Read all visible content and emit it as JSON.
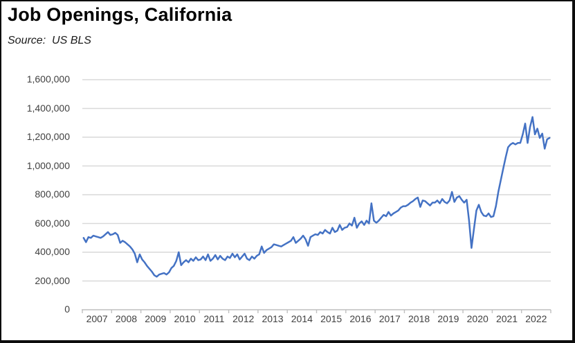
{
  "header": {
    "title": "Job Openings, California",
    "source": "Source:  US BLS"
  },
  "chart_data": {
    "type": "line",
    "title": "Job Openings, California",
    "source": "Source:  US BLS",
    "xlabel": "",
    "ylabel": "",
    "ylim": [
      0,
      1600000
    ],
    "grid": true,
    "legend": "none",
    "frequency": "monthly",
    "start_month": "2007-01",
    "end_month": "2022-12",
    "x_year_labels": [
      "2007",
      "2008",
      "2009",
      "2010",
      "2011",
      "2012",
      "2013",
      "2014",
      "2015",
      "2016",
      "2017",
      "2018",
      "2019",
      "2020",
      "2021",
      "2022"
    ],
    "y_ticks": [
      {
        "value": 0,
        "label": "0"
      },
      {
        "value": 200000,
        "label": "200,000"
      },
      {
        "value": 400000,
        "label": "400,000"
      },
      {
        "value": 600000,
        "label": "600,000"
      },
      {
        "value": 800000,
        "label": "800,000"
      },
      {
        "value": 1000000,
        "label": "1,000,000"
      },
      {
        "value": 1200000,
        "label": "1,200,000"
      },
      {
        "value": 1400000,
        "label": "1,400,000"
      },
      {
        "value": 1600000,
        "label": "1,600,000"
      }
    ],
    "series": [
      {
        "name": "Job Openings",
        "values": [
          500000,
          470000,
          505000,
          500000,
          515000,
          510000,
          505000,
          500000,
          510000,
          525000,
          540000,
          520000,
          525000,
          535000,
          520000,
          465000,
          480000,
          470000,
          455000,
          440000,
          420000,
          390000,
          330000,
          385000,
          350000,
          330000,
          305000,
          285000,
          265000,
          240000,
          230000,
          245000,
          250000,
          255000,
          245000,
          260000,
          290000,
          305000,
          340000,
          400000,
          310000,
          330000,
          345000,
          330000,
          355000,
          340000,
          365000,
          345000,
          350000,
          370000,
          345000,
          385000,
          340000,
          355000,
          380000,
          350000,
          375000,
          355000,
          345000,
          370000,
          360000,
          390000,
          365000,
          385000,
          350000,
          370000,
          390000,
          355000,
          345000,
          370000,
          355000,
          375000,
          385000,
          440000,
          395000,
          415000,
          425000,
          435000,
          455000,
          450000,
          445000,
          440000,
          450000,
          460000,
          470000,
          480000,
          505000,
          465000,
          480000,
          495000,
          515000,
          490000,
          445000,
          505000,
          515000,
          525000,
          520000,
          540000,
          530000,
          555000,
          540000,
          530000,
          570000,
          540000,
          550000,
          590000,
          555000,
          570000,
          575000,
          600000,
          585000,
          640000,
          570000,
          600000,
          615000,
          590000,
          620000,
          600000,
          740000,
          620000,
          605000,
          620000,
          640000,
          660000,
          650000,
          680000,
          655000,
          670000,
          680000,
          690000,
          710000,
          720000,
          720000,
          730000,
          745000,
          755000,
          770000,
          780000,
          715000,
          760000,
          755000,
          740000,
          725000,
          745000,
          745000,
          760000,
          740000,
          770000,
          750000,
          740000,
          760000,
          820000,
          750000,
          780000,
          790000,
          765000,
          745000,
          765000,
          620000,
          430000,
          560000,
          690000,
          730000,
          680000,
          655000,
          650000,
          670000,
          645000,
          650000,
          720000,
          820000,
          900000,
          980000,
          1060000,
          1130000,
          1150000,
          1160000,
          1150000,
          1160000,
          1160000,
          1220000,
          1295000,
          1160000,
          1270000,
          1340000,
          1220000,
          1260000,
          1195000,
          1225000,
          1120000,
          1185000,
          1195000
        ]
      }
    ],
    "colors": {
      "line": "#4472C4",
      "gridline": "#D9D9D9",
      "axis": "#BFBFBF",
      "tick_text": "#404040",
      "title_text": "#000000",
      "background": "#FFFFFF",
      "border": "#0D0D0D"
    }
  }
}
